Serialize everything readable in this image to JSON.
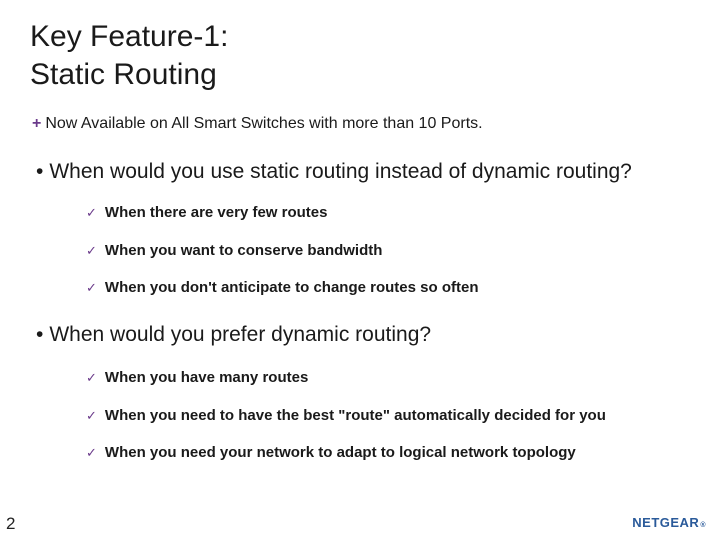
{
  "title_line1": "Key Feature-1:",
  "title_line2": "Static Routing",
  "plus_symbol": "+",
  "plus_text": "Now Available on All Smart Switches with more than 10 Ports.",
  "q1": "When would you use static routing instead of dynamic routing?",
  "q1_items": [
    "When there are very few routes",
    "When you want to conserve bandwidth",
    "When you don't anticipate to change routes so often"
  ],
  "q2": "When would you prefer dynamic routing?",
  "q2_items": [
    "When you have many routes",
    "When you need to have the best \"route\" automatically decided for you",
    "When you need your network to adapt to logical network topology"
  ],
  "page_number": "2",
  "logo_text": "NETGEAR",
  "colors": {
    "accent": "#6a3a8a",
    "logo": "#2a5a9a",
    "text": "#1a1a1a",
    "bg": "#ffffff"
  }
}
